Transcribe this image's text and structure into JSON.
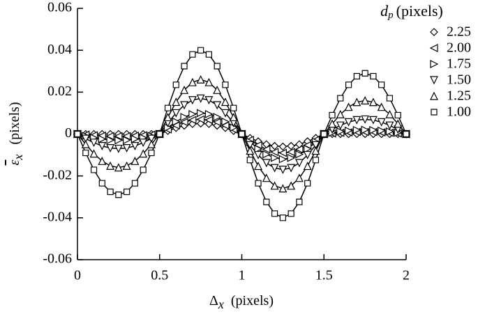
{
  "chart_data": {
    "type": "line",
    "legend_title": {
      "symbol": "d",
      "subscript": "p",
      "text": "(pixels)"
    },
    "xlabel": {
      "symbol": "Δ",
      "subscript": "x",
      "text": "(pixels)"
    },
    "ylabel": {
      "symbol": "ε",
      "subscript": "x",
      "text": "(pixels)"
    },
    "x": [
      0,
      0.05,
      0.1,
      0.15,
      0.2,
      0.25,
      0.3,
      0.35,
      0.4,
      0.45,
      0.5,
      0.55,
      0.6,
      0.65,
      0.7,
      0.75,
      0.8,
      0.85,
      0.9,
      0.95,
      1,
      1.05,
      1.1,
      1.15,
      1.2,
      1.25,
      1.3,
      1.35,
      1.4,
      1.45,
      1.5,
      1.55,
      1.6,
      1.65,
      1.7,
      1.75,
      1.8,
      1.85,
      1.9,
      1.95,
      2
    ],
    "xlim": [
      0,
      2
    ],
    "xticks": [
      0,
      0.5,
      1,
      1.5,
      2
    ],
    "ylim": [
      -0.06,
      0.06
    ],
    "yticks": [
      -0.06,
      -0.04,
      -0.02,
      0,
      0.02,
      0.04,
      0.06
    ],
    "legend": "top-right",
    "series": [
      {
        "name": "2.25",
        "marker": "diamond",
        "color": "#000000",
        "values": [
          0,
          0,
          0,
          0,
          0,
          0,
          0,
          0,
          0,
          0,
          0,
          0.0015,
          0.0029,
          0.004,
          0.0048,
          0.005,
          0.0048,
          0.004,
          0.0029,
          0.0015,
          0,
          -0.0019,
          -0.0035,
          -0.0049,
          -0.0057,
          -0.006,
          -0.0057,
          -0.0049,
          -0.0035,
          -0.0019,
          0,
          0,
          0,
          0,
          0,
          0,
          0,
          0,
          0,
          0,
          0
        ]
      },
      {
        "name": "2.00",
        "marker": "triangle-left",
        "color": "#000000",
        "values": [
          0,
          -0.0003,
          -0.0006,
          -0.0008,
          -0.001,
          -0.001,
          -0.001,
          -0.0008,
          -0.0006,
          -0.0003,
          0,
          0.0022,
          0.0041,
          0.0057,
          0.0067,
          0.007,
          0.0067,
          0.0057,
          0.0041,
          0.0022,
          0,
          -0.0028,
          -0.0053,
          -0.0073,
          -0.0086,
          -0.009,
          -0.0086,
          -0.0073,
          -0.0053,
          -0.0028,
          0,
          0.0003,
          0.0006,
          0.0008,
          0.001,
          0.001,
          0.001,
          0.0008,
          0.0006,
          0.0003,
          0
        ]
      },
      {
        "name": "1.75",
        "marker": "triangle-right",
        "color": "#000000",
        "values": [
          0,
          -0.0009,
          -0.0018,
          -0.0024,
          -0.0029,
          -0.003,
          -0.0029,
          -0.0024,
          -0.0018,
          -0.0009,
          0,
          0.0031,
          0.0059,
          0.0081,
          0.0095,
          0.01,
          0.0095,
          0.0081,
          0.0059,
          0.0031,
          0,
          -0.0037,
          -0.0071,
          -0.0097,
          -0.0114,
          -0.012,
          -0.0114,
          -0.0097,
          -0.0071,
          -0.0037,
          0,
          0.0006,
          0.0012,
          0.0016,
          0.0019,
          0.002,
          0.0019,
          0.0016,
          0.0012,
          0.0006,
          0
        ]
      },
      {
        "name": "1.50",
        "marker": "triangle-down",
        "color": "#000000",
        "values": [
          0,
          -0.0022,
          -0.0041,
          -0.0057,
          -0.0067,
          -0.007,
          -0.0067,
          -0.0057,
          -0.0041,
          -0.0022,
          0,
          0.0053,
          0.01,
          0.0138,
          0.0162,
          0.017,
          0.0162,
          0.0138,
          0.01,
          0.0053,
          0,
          -0.0053,
          -0.01,
          -0.0138,
          -0.0162,
          -0.017,
          -0.0162,
          -0.0138,
          -0.01,
          -0.0053,
          0,
          0.0022,
          0.0041,
          0.0057,
          0.0067,
          0.007,
          0.0067,
          0.0057,
          0.0041,
          0.0022,
          0
        ]
      },
      {
        "name": "1.25",
        "marker": "triangle-up",
        "color": "#000000",
        "values": [
          0,
          -0.0049,
          -0.0094,
          -0.0129,
          -0.0152,
          -0.016,
          -0.0152,
          -0.0129,
          -0.0094,
          -0.0049,
          0,
          0.008,
          0.0153,
          0.021,
          0.0247,
          0.026,
          0.0247,
          0.021,
          0.0153,
          0.008,
          0,
          -0.008,
          -0.0153,
          -0.021,
          -0.0247,
          -0.026,
          -0.0247,
          -0.021,
          -0.0153,
          -0.008,
          0,
          0.0049,
          0.0094,
          0.0129,
          0.0152,
          0.016,
          0.0152,
          0.0129,
          0.0094,
          0.0049,
          0
        ]
      },
      {
        "name": "1.00",
        "marker": "square",
        "color": "#000000",
        "values": [
          0,
          -0.009,
          -0.0171,
          -0.0235,
          -0.0276,
          -0.029,
          -0.0276,
          -0.0235,
          -0.0171,
          -0.009,
          0,
          0.0124,
          0.0235,
          0.0324,
          0.038,
          0.04,
          0.038,
          0.0324,
          0.0235,
          0.0124,
          0,
          -0.0124,
          -0.0235,
          -0.0324,
          -0.038,
          -0.04,
          -0.038,
          -0.0324,
          -0.0235,
          -0.0124,
          0,
          0.009,
          0.0171,
          0.0235,
          0.0276,
          0.029,
          0.0276,
          0.0235,
          0.0171,
          0.009,
          0
        ]
      }
    ]
  }
}
